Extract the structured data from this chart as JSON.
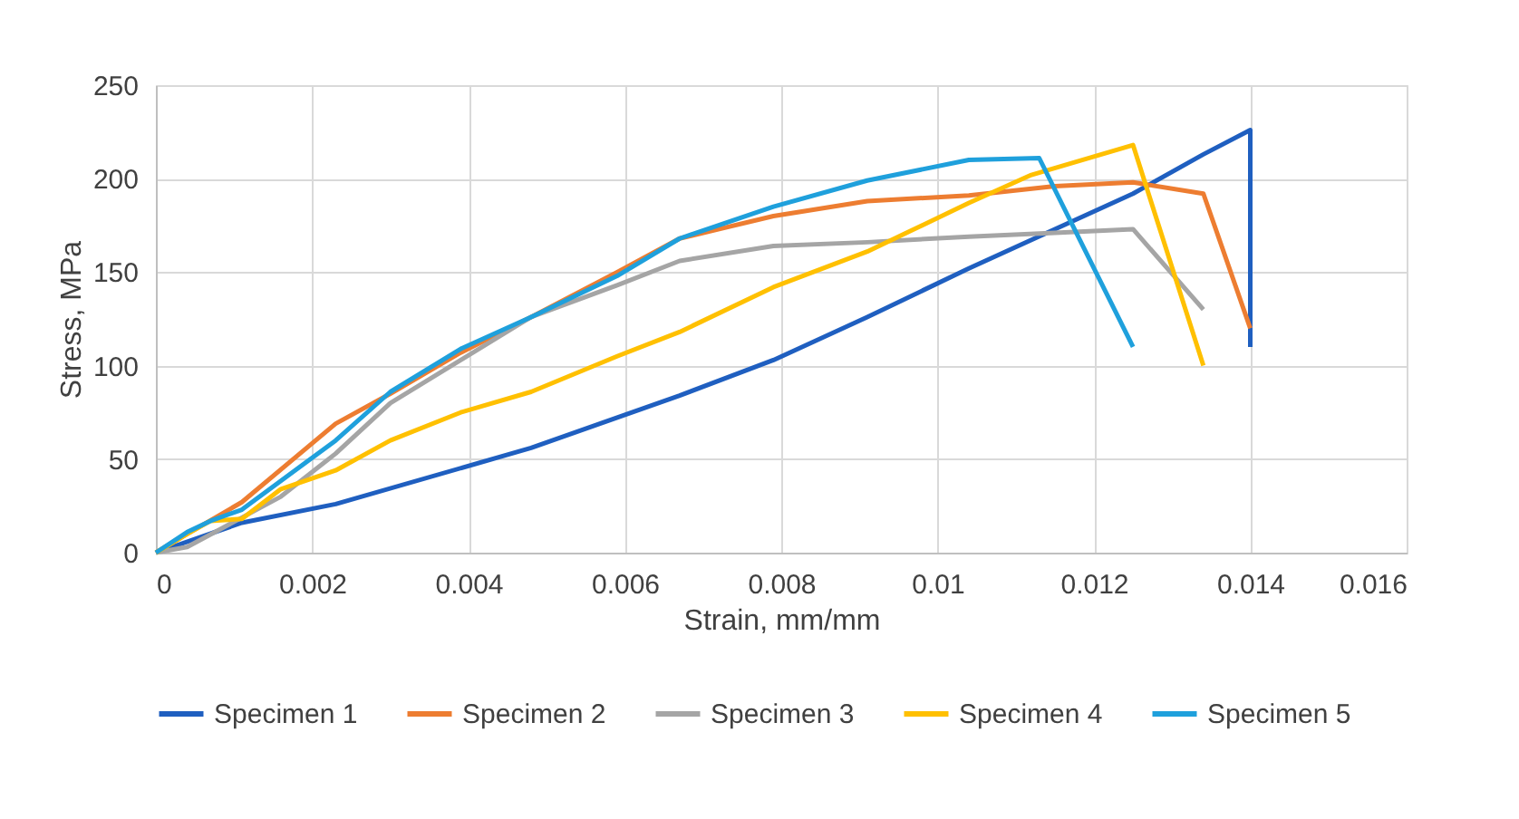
{
  "chart_data": {
    "type": "line",
    "xlabel": "Strain, mm/mm",
    "ylabel": "Stress, MPa",
    "xlim": [
      0,
      0.016
    ],
    "xticks": [
      0,
      0.002,
      0.004,
      0.006,
      0.008,
      0.01,
      0.012,
      0.014,
      0.016
    ],
    "ylim": [
      0,
      250
    ],
    "yticks": [
      0,
      50,
      100,
      150,
      200,
      250
    ],
    "grid": true,
    "legend": "bottom",
    "marker": "none",
    "line_style": "solid",
    "series": [
      {
        "name": "Specimen 1",
        "color": "#1f5fc0",
        "x": [
          0,
          0.0011,
          0.0023,
          0.0048,
          0.0067,
          0.0079,
          0.0091,
          0.0104,
          0.0125,
          0.0134,
          0.014,
          0.014
        ],
        "values": [
          0,
          16,
          26,
          56,
          84,
          103,
          126,
          152,
          192,
          213,
          226,
          110
        ]
      },
      {
        "name": "Specimen 2",
        "color": "#ed7d31",
        "x": [
          0,
          0.0004,
          0.0011,
          0.0023,
          0.003,
          0.0039,
          0.0048,
          0.0059,
          0.0067,
          0.0079,
          0.0091,
          0.0104,
          0.0115,
          0.0125,
          0.0134,
          0.014
        ],
        "values": [
          0,
          10,
          27,
          69,
          85,
          107,
          126,
          150,
          168,
          180,
          188,
          191,
          196,
          198,
          192,
          120
        ]
      },
      {
        "name": "Specimen 3",
        "color": "#a5a5a5",
        "x": [
          0,
          0.0004,
          0.0008,
          0.0016,
          0.0023,
          0.003,
          0.0039,
          0.0048,
          0.0059,
          0.0067,
          0.0079,
          0.0091,
          0.0104,
          0.0115,
          0.0125,
          0.0134
        ],
        "values": [
          0,
          3,
          12,
          30,
          53,
          80,
          103,
          126,
          143,
          156,
          164,
          166,
          169,
          171,
          173,
          130
        ]
      },
      {
        "name": "Specimen 4",
        "color": "#ffc000",
        "x": [
          0,
          0.0004,
          0.0007,
          0.0011,
          0.0016,
          0.0023,
          0.003,
          0.0039,
          0.0048,
          0.0059,
          0.0067,
          0.0079,
          0.0091,
          0.0104,
          0.0112,
          0.0125,
          0.0134
        ],
        "values": [
          0,
          10,
          17,
          18,
          34,
          44,
          60,
          75,
          86,
          105,
          118,
          142,
          161,
          187,
          202,
          218,
          100
        ]
      },
      {
        "name": "Specimen 5",
        "color": "#1fa0dc",
        "x": [
          0,
          0.0004,
          0.0007,
          0.0011,
          0.0023,
          0.003,
          0.0039,
          0.0048,
          0.0059,
          0.0067,
          0.0079,
          0.0091,
          0.0104,
          0.0113,
          0.0125
        ],
        "values": [
          0,
          11,
          17,
          23,
          60,
          86,
          109,
          126,
          148,
          168,
          185,
          199,
          210,
          211,
          110
        ]
      }
    ]
  }
}
